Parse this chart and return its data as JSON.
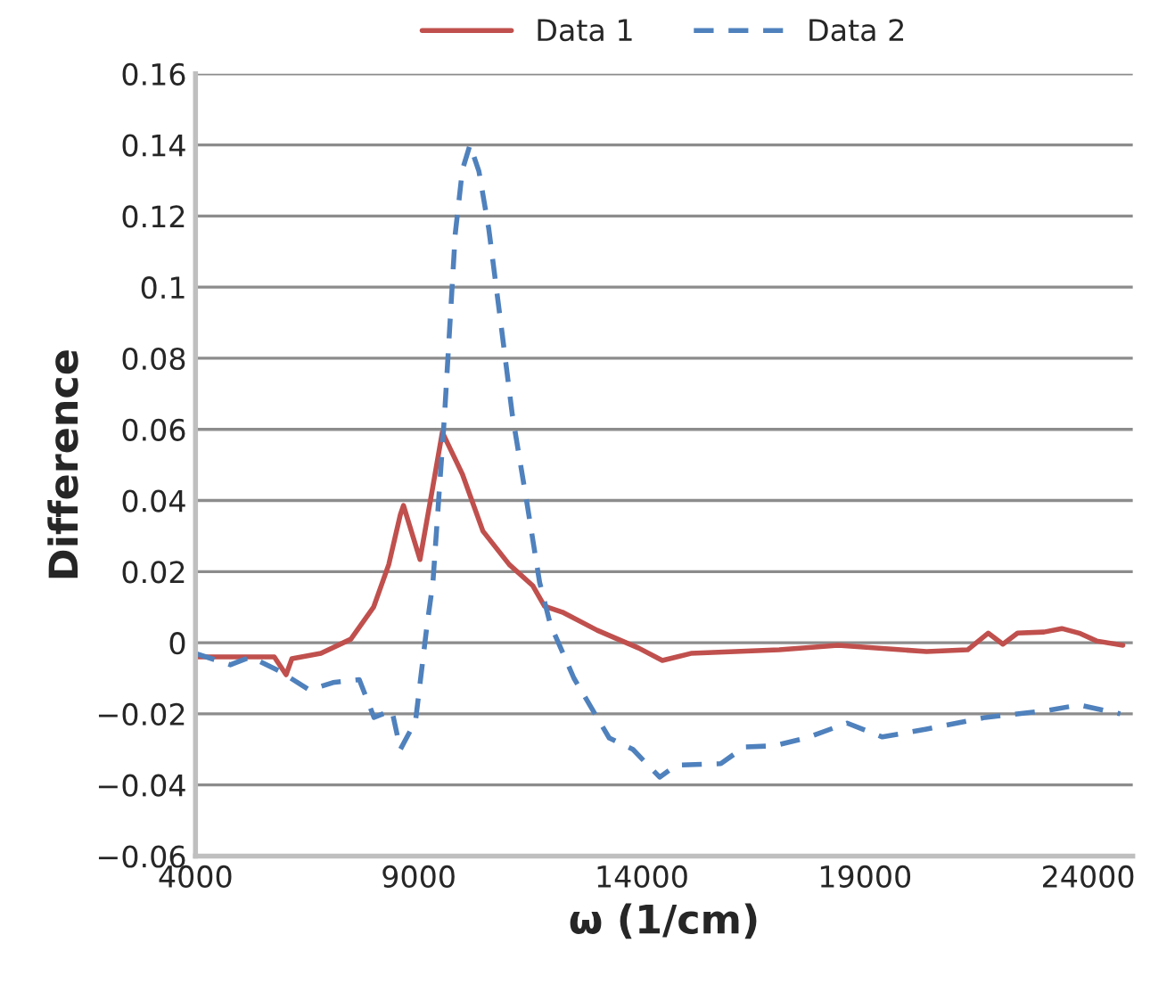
{
  "chart_data": {
    "type": "line",
    "xlabel": "ω (1/cm)",
    "ylabel": "Difference",
    "legend": "top",
    "grid": "y",
    "xlim": [
      4000,
      25000
    ],
    "xticks": [
      4000,
      9000,
      14000,
      19000,
      24000
    ],
    "ylim": [
      -0.06,
      0.16
    ],
    "yticks": [
      {
        "value": -0.06,
        "label": "−0.06"
      },
      {
        "value": -0.04,
        "label": "−0.04"
      },
      {
        "value": -0.02,
        "label": "−0.02"
      },
      0,
      0.02,
      0.04,
      0.06,
      0.08,
      0.1,
      0.12,
      0.14,
      0.16
    ],
    "series": [
      {
        "name": "Data 1",
        "color": "#c0504d",
        "line_style": "solid",
        "x": [
          4000,
          5765,
          6030,
          6160,
          6810,
          7480,
          7990,
          8330,
          8590,
          8660,
          9030,
          9320,
          9530,
          9980,
          10440,
          11030,
          11560,
          11820,
          12220,
          13000,
          13930,
          14460,
          15100,
          17080,
          18400,
          20380,
          21300,
          21760,
          22090,
          22420,
          23010,
          23410,
          23800,
          24190,
          24780
        ],
        "values": [
          -0.004,
          -0.004,
          -0.009,
          -0.0045,
          -0.003,
          0.001,
          0.01,
          0.022,
          0.036,
          0.0386,
          0.0234,
          0.044,
          0.0592,
          0.0474,
          0.0314,
          0.022,
          0.016,
          0.0103,
          0.0086,
          0.0035,
          -0.0015,
          -0.005,
          -0.003,
          -0.002,
          -0.0007,
          -0.0025,
          -0.002,
          0.0027,
          -0.0004,
          0.0027,
          0.003,
          0.004,
          0.0027,
          0.0005,
          -0.0007
        ]
      },
      {
        "name": "Data 2",
        "color": "#4f81bd",
        "line_style": "dashed",
        "x": [
          4000,
          4780,
          5240,
          5900,
          6550,
          7080,
          7670,
          8000,
          8400,
          8590,
          8930,
          9190,
          9320,
          9580,
          9820,
          9980,
          10150,
          10350,
          10570,
          10830,
          11100,
          11430,
          11710,
          11950,
          12480,
          13270,
          13800,
          14400,
          14780,
          15770,
          16300,
          16960,
          17680,
          18600,
          19390,
          20380,
          21700,
          23010,
          23800,
          24720
        ],
        "values": [
          -0.003,
          -0.0062,
          -0.004,
          -0.0081,
          -0.0133,
          -0.0112,
          -0.0104,
          -0.021,
          -0.019,
          -0.03,
          -0.022,
          0.0052,
          0.017,
          0.064,
          0.115,
          0.133,
          0.14,
          0.1326,
          0.1165,
          0.091,
          0.064,
          0.039,
          0.017,
          0.0052,
          -0.01,
          -0.0268,
          -0.03,
          -0.0378,
          -0.0344,
          -0.034,
          -0.0293,
          -0.029,
          -0.0268,
          -0.0226,
          -0.0265,
          -0.0243,
          -0.021,
          -0.0192,
          -0.0175,
          -0.02
        ]
      }
    ]
  }
}
